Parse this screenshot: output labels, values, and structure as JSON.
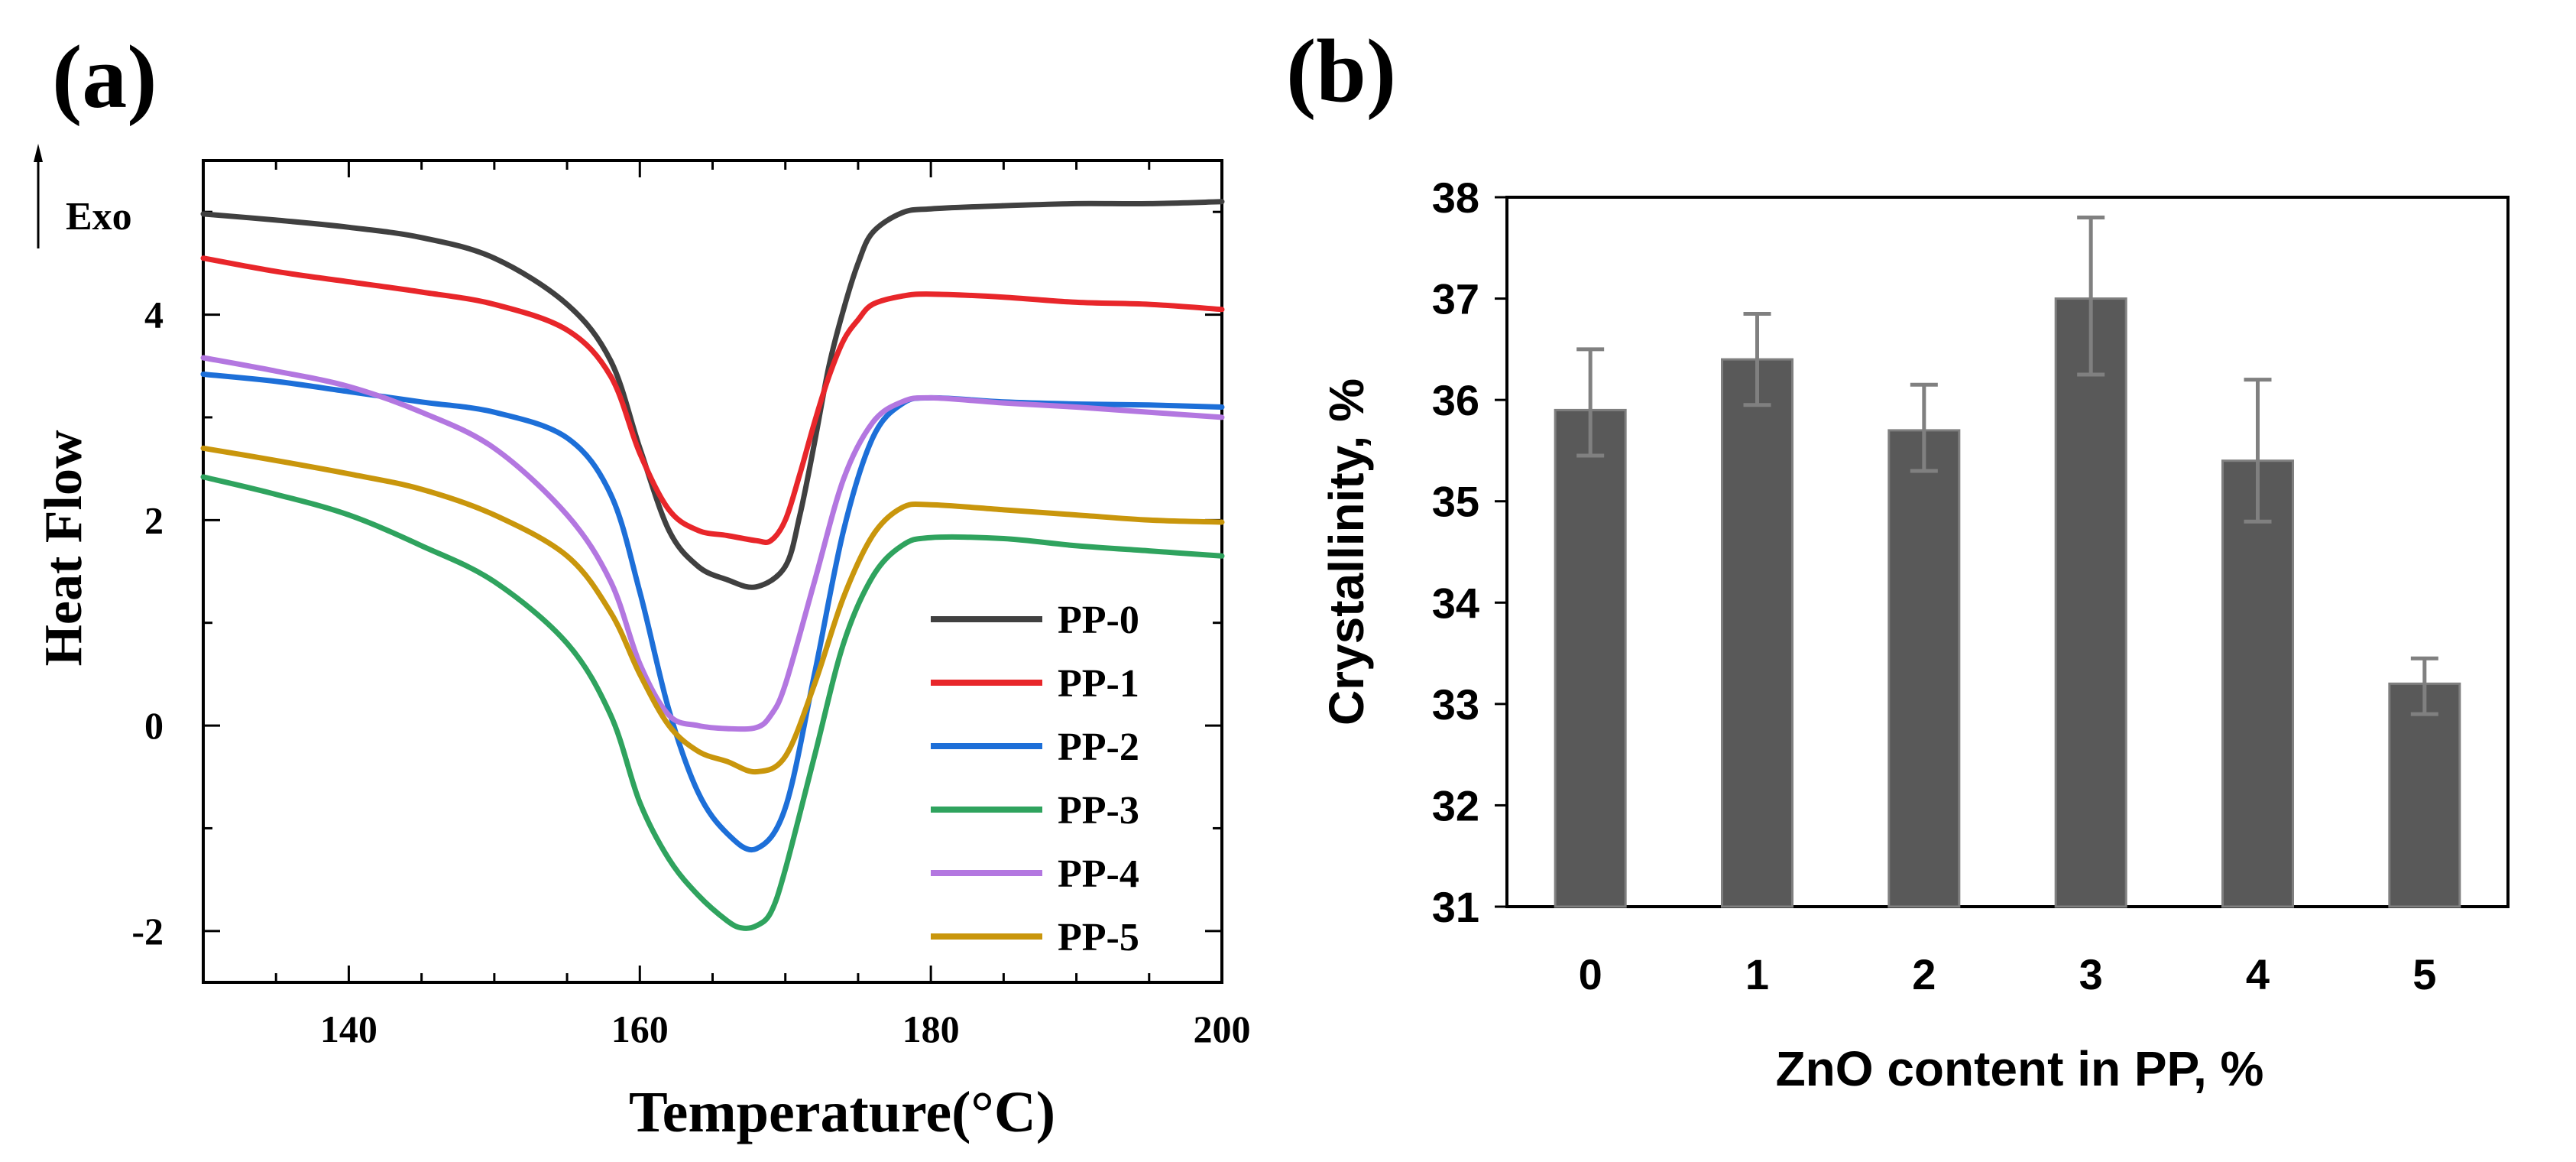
{
  "panel_labels": {
    "a": "(a)",
    "b": "(b)"
  },
  "chart_data": [
    {
      "type": "line",
      "panel": "(a)",
      "title": "",
      "xlabel": "Temperature(°C)",
      "ylabel": "Heat Flow",
      "exo_label": "Exo",
      "xlim": [
        130,
        200
      ],
      "ylim": [
        -2.5,
        5.5
      ],
      "xticks": [
        140,
        160,
        180,
        200
      ],
      "yticks": [
        -2,
        0,
        2,
        4
      ],
      "xtick_labels": [
        "140",
        "160",
        "180",
        "200"
      ],
      "ytick_labels": [
        "-2",
        "0",
        "2",
        "4"
      ],
      "legend_position": "bottom-right",
      "series": [
        {
          "name": "PP-0",
          "color": "#404040",
          "x": [
            130,
            135,
            140,
            145,
            150,
            155,
            158,
            160,
            162,
            164,
            166,
            168,
            170,
            171,
            172,
            173,
            174,
            175,
            176,
            178,
            180,
            185,
            190,
            195,
            200
          ],
          "y": [
            4.98,
            4.92,
            4.85,
            4.75,
            4.55,
            4.1,
            3.55,
            2.7,
            1.9,
            1.55,
            1.42,
            1.35,
            1.55,
            2.05,
            2.75,
            3.5,
            4.05,
            4.5,
            4.8,
            4.99,
            5.03,
            5.06,
            5.08,
            5.08,
            5.1
          ]
        },
        {
          "name": "PP-1",
          "color": "#e8262a",
          "x": [
            130,
            135,
            140,
            145,
            150,
            155,
            158,
            160,
            162,
            164,
            166,
            168,
            169,
            170,
            171,
            172,
            173,
            174,
            175,
            176,
            178,
            180,
            185,
            190,
            195,
            200
          ],
          "y": [
            4.55,
            4.42,
            4.32,
            4.22,
            4.1,
            3.85,
            3.4,
            2.65,
            2.1,
            1.9,
            1.85,
            1.8,
            1.8,
            2.0,
            2.45,
            2.95,
            3.4,
            3.75,
            3.95,
            4.1,
            4.18,
            4.2,
            4.17,
            4.12,
            4.1,
            4.05
          ]
        },
        {
          "name": "PP-2",
          "color": "#1d6fd8",
          "x": [
            130,
            135,
            140,
            145,
            150,
            155,
            158,
            160,
            162,
            164,
            166,
            168,
            170,
            172,
            174,
            176,
            178,
            180,
            185,
            190,
            195,
            200
          ],
          "y": [
            3.42,
            3.35,
            3.25,
            3.15,
            3.05,
            2.8,
            2.25,
            1.3,
            0.15,
            -0.65,
            -1.05,
            -1.2,
            -0.8,
            0.5,
            1.9,
            2.8,
            3.13,
            3.19,
            3.15,
            3.13,
            3.12,
            3.1
          ]
        },
        {
          "name": "PP-3",
          "color": "#2fa35e",
          "x": [
            130,
            135,
            140,
            145,
            150,
            155,
            158,
            160,
            162,
            164,
            166,
            167,
            168,
            169,
            170,
            172,
            174,
            176,
            178,
            180,
            185,
            190,
            195,
            200
          ],
          "y": [
            2.42,
            2.25,
            2.05,
            1.75,
            1.4,
            0.8,
            0.1,
            -0.75,
            -1.3,
            -1.65,
            -1.9,
            -1.97,
            -1.95,
            -1.82,
            -1.4,
            -0.3,
            0.8,
            1.45,
            1.75,
            1.83,
            1.82,
            1.75,
            1.7,
            1.65
          ]
        },
        {
          "name": "PP-4",
          "color": "#b377e0",
          "x": [
            130,
            135,
            140,
            145,
            150,
            155,
            158,
            160,
            162,
            164,
            166,
            168,
            169,
            170,
            172,
            174,
            176,
            178,
            180,
            185,
            190,
            195,
            200
          ],
          "y": [
            3.58,
            3.45,
            3.3,
            3.05,
            2.7,
            2.05,
            1.4,
            0.6,
            0.1,
            0.0,
            -0.03,
            -0.02,
            0.1,
            0.4,
            1.4,
            2.4,
            2.95,
            3.15,
            3.19,
            3.14,
            3.1,
            3.05,
            3.0
          ]
        },
        {
          "name": "PP-5",
          "color": "#c9960c",
          "x": [
            130,
            135,
            140,
            145,
            150,
            155,
            158,
            160,
            162,
            164,
            166,
            168,
            170,
            172,
            174,
            176,
            178,
            180,
            185,
            190,
            195,
            200
          ],
          "y": [
            2.7,
            2.58,
            2.45,
            2.3,
            2.05,
            1.65,
            1.1,
            0.5,
            0.0,
            -0.25,
            -0.35,
            -0.45,
            -0.3,
            0.4,
            1.25,
            1.85,
            2.12,
            2.15,
            2.1,
            2.05,
            2.0,
            1.98
          ]
        }
      ]
    },
    {
      "type": "bar",
      "panel": "(b)",
      "title": "",
      "xlabel": "ZnO content in PP, %",
      "ylabel": "Crystallinity, %",
      "categories": [
        "0",
        "1",
        "2",
        "3",
        "4",
        "5"
      ],
      "values": [
        35.9,
        36.4,
        35.7,
        37.0,
        35.4,
        33.2
      ],
      "error_high": [
        36.5,
        36.85,
        36.15,
        37.8,
        36.2,
        33.45
      ],
      "error_low": [
        35.45,
        35.95,
        35.3,
        36.25,
        34.8,
        32.9
      ],
      "ylim": [
        31,
        38
      ],
      "yticks": [
        31,
        32,
        33,
        34,
        35,
        36,
        37,
        38
      ],
      "ytick_labels": [
        "31",
        "32",
        "33",
        "34",
        "35",
        "36",
        "37",
        "38"
      ],
      "bar_color": "#595959",
      "error_color": "#808080",
      "grid": false
    }
  ]
}
